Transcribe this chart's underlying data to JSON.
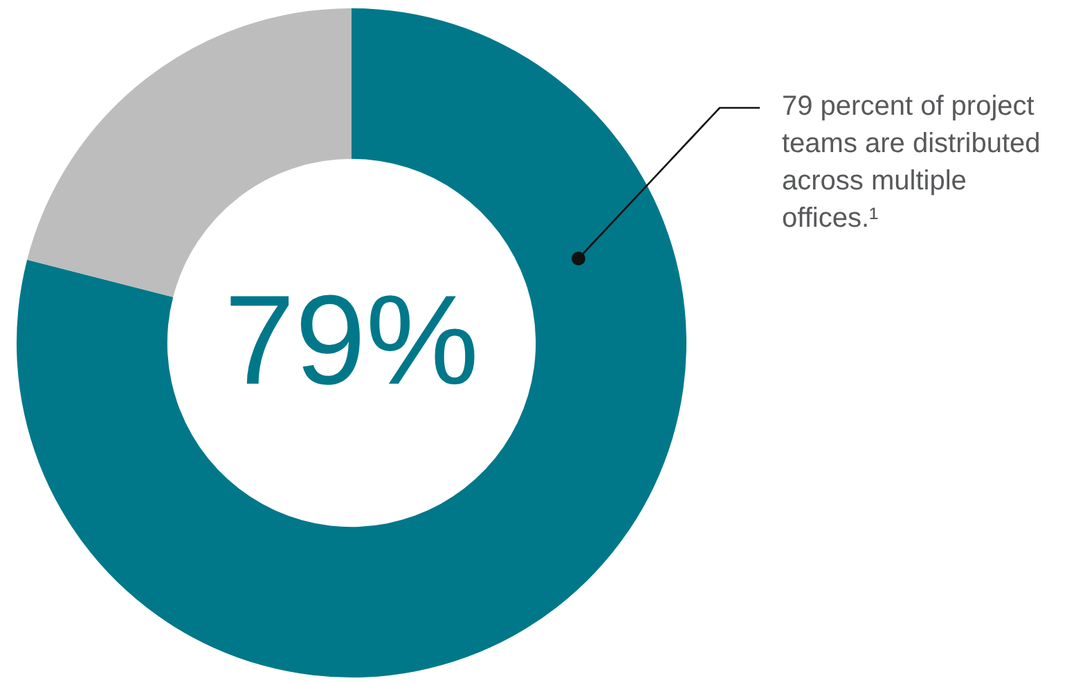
{
  "chart_data": {
    "type": "donut",
    "categories": [
      null,
      null
    ],
    "values": [
      79,
      21
    ],
    "colors": [
      "#00788a",
      "#bcbdbc"
    ],
    "value_labels": [
      "79%",
      null
    ],
    "annotations": [
      "79 percent of project teams are distributed across multiple offices.¹"
    ],
    "legend": false
  }
}
